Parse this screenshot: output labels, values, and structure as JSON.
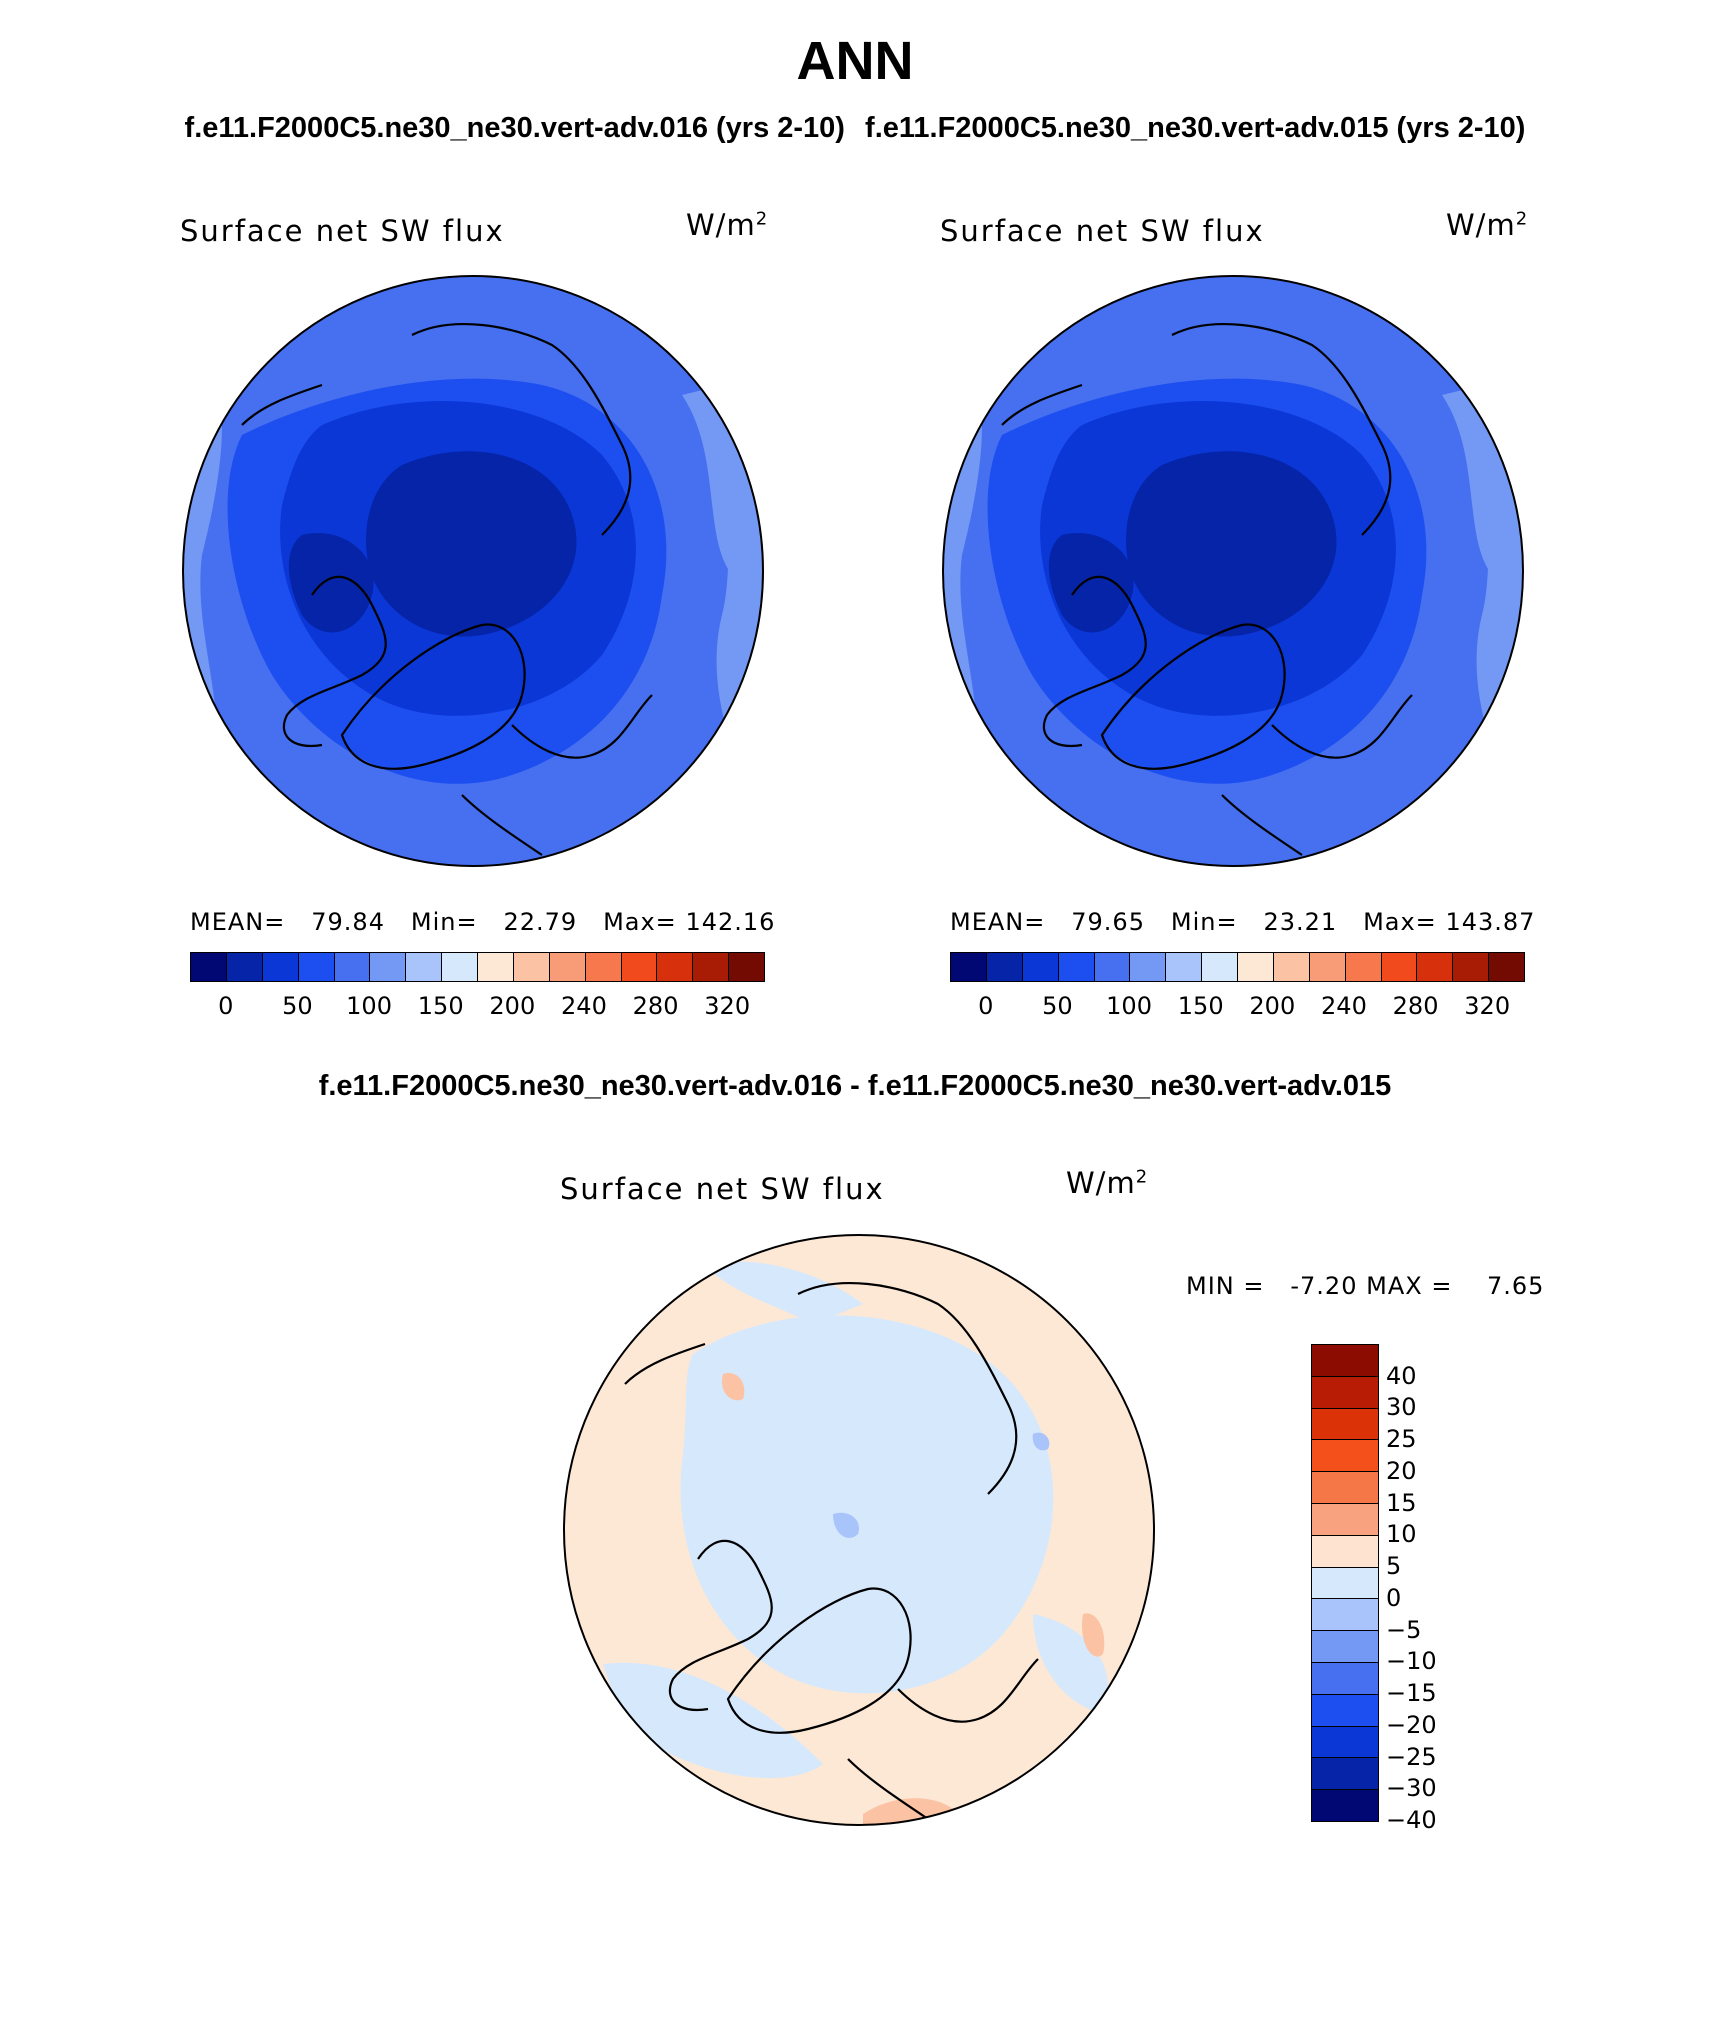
{
  "header": {
    "title": "ANN",
    "case_left": "f.e11.F2000C5.ne30_ne30.vert-adv.016 (yrs 2-10)",
    "case_right": "f.e11.F2000C5.ne30_ne30.vert-adv.015 (yrs 2-10)",
    "diff_title": "f.e11.F2000C5.ne30_ne30.vert-adv.016 - f.e11.F2000C5.ne30_ne30.vert-adv.015"
  },
  "panels": [
    {
      "name": "Surface net SW flux",
      "unit": "W/m",
      "unit_exp": "2",
      "mean_label": "MEAN=",
      "mean": "79.84",
      "min_label": "Min=",
      "min": "22.79",
      "max_label": "Max=",
      "max": "142.16"
    },
    {
      "name": "Surface net SW flux",
      "unit": "W/m",
      "unit_exp": "2",
      "mean_label": "MEAN=",
      "mean": "79.65",
      "min_label": "Min=",
      "min": "23.21",
      "max_label": "Max=",
      "max": "143.87"
    }
  ],
  "diff_panel": {
    "name": "Surface net SW flux",
    "unit": "W/m",
    "unit_exp": "2",
    "min_label": "MIN =",
    "min": "-7.20",
    "max_label": "MAX =",
    "max": "7.65"
  },
  "colorbar_abs": {
    "labels": [
      "0",
      "50",
      "100",
      "150",
      "200",
      "240",
      "280",
      "320"
    ],
    "colors": [
      "#020873",
      "#0524a8",
      "#0a37d6",
      "#1d4ff0",
      "#4670f0",
      "#7399f5",
      "#a8c4fa",
      "#d6e8fc",
      "#fde8d6",
      "#fbc3a4",
      "#f89c78",
      "#f6784c",
      "#f04a1d",
      "#d6300c",
      "#a81c05",
      "#730b02"
    ]
  },
  "colorbar_diff": {
    "labels": [
      "40",
      "30",
      "25",
      "20",
      "15",
      "10",
      "5",
      "0",
      "−5",
      "−10",
      "−15",
      "−20",
      "−25",
      "−30",
      "−40"
    ],
    "colors": [
      "#8c0c02",
      "#b81c04",
      "#dc3208",
      "#f3501b",
      "#f57748",
      "#f9a27f",
      "#fde3d0",
      "#d6e8fc",
      "#a8c4fa",
      "#7399f5",
      "#4670f0",
      "#1d4ff0",
      "#0a37d6",
      "#0524a8",
      "#020873"
    ]
  },
  "map_fields": {
    "abs_colors": [
      "#4670f0",
      "#1d4ff0",
      "#0a37d6",
      "#0524a8",
      "#7399f5"
    ],
    "diff_colors": [
      "#fde8d6",
      "#d6e8fc",
      "#a8c4fa",
      "#fbc3a4"
    ]
  }
}
